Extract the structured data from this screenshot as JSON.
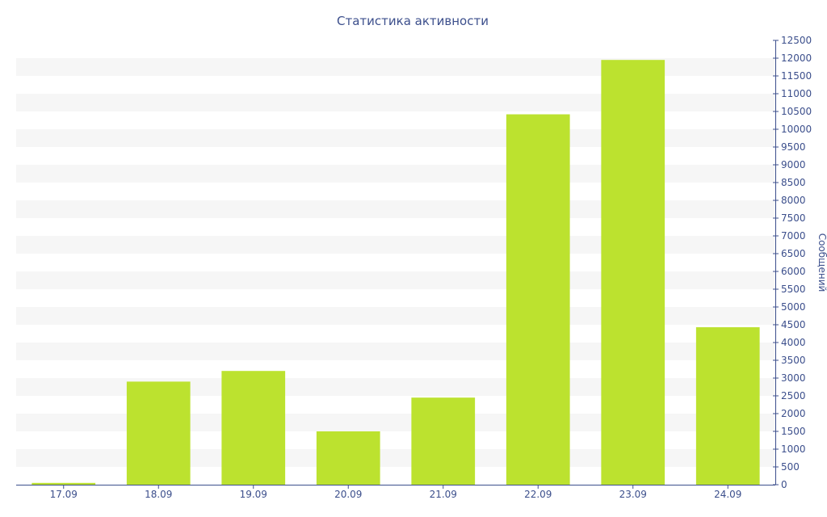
{
  "chart_data": {
    "type": "bar",
    "title": "Статистика активности",
    "xlabel": "",
    "ylabel": "Сообщений",
    "categories": [
      "17.09",
      "18.09",
      "19.09",
      "20.09",
      "21.09",
      "22.09",
      "23.09",
      "24.09"
    ],
    "values": [
      50,
      2900,
      3200,
      1500,
      2450,
      10420,
      11950,
      4430
    ],
    "ylim": [
      0,
      12500
    ],
    "ytick_step": 500,
    "y_axis_side": "right",
    "grid": "alternating horizontal bands",
    "legend": "none",
    "colors": {
      "bar": "#bce22f",
      "axis": "#3c4f8c",
      "text": "#3c4f8c",
      "band": "#f6f6f6"
    }
  }
}
